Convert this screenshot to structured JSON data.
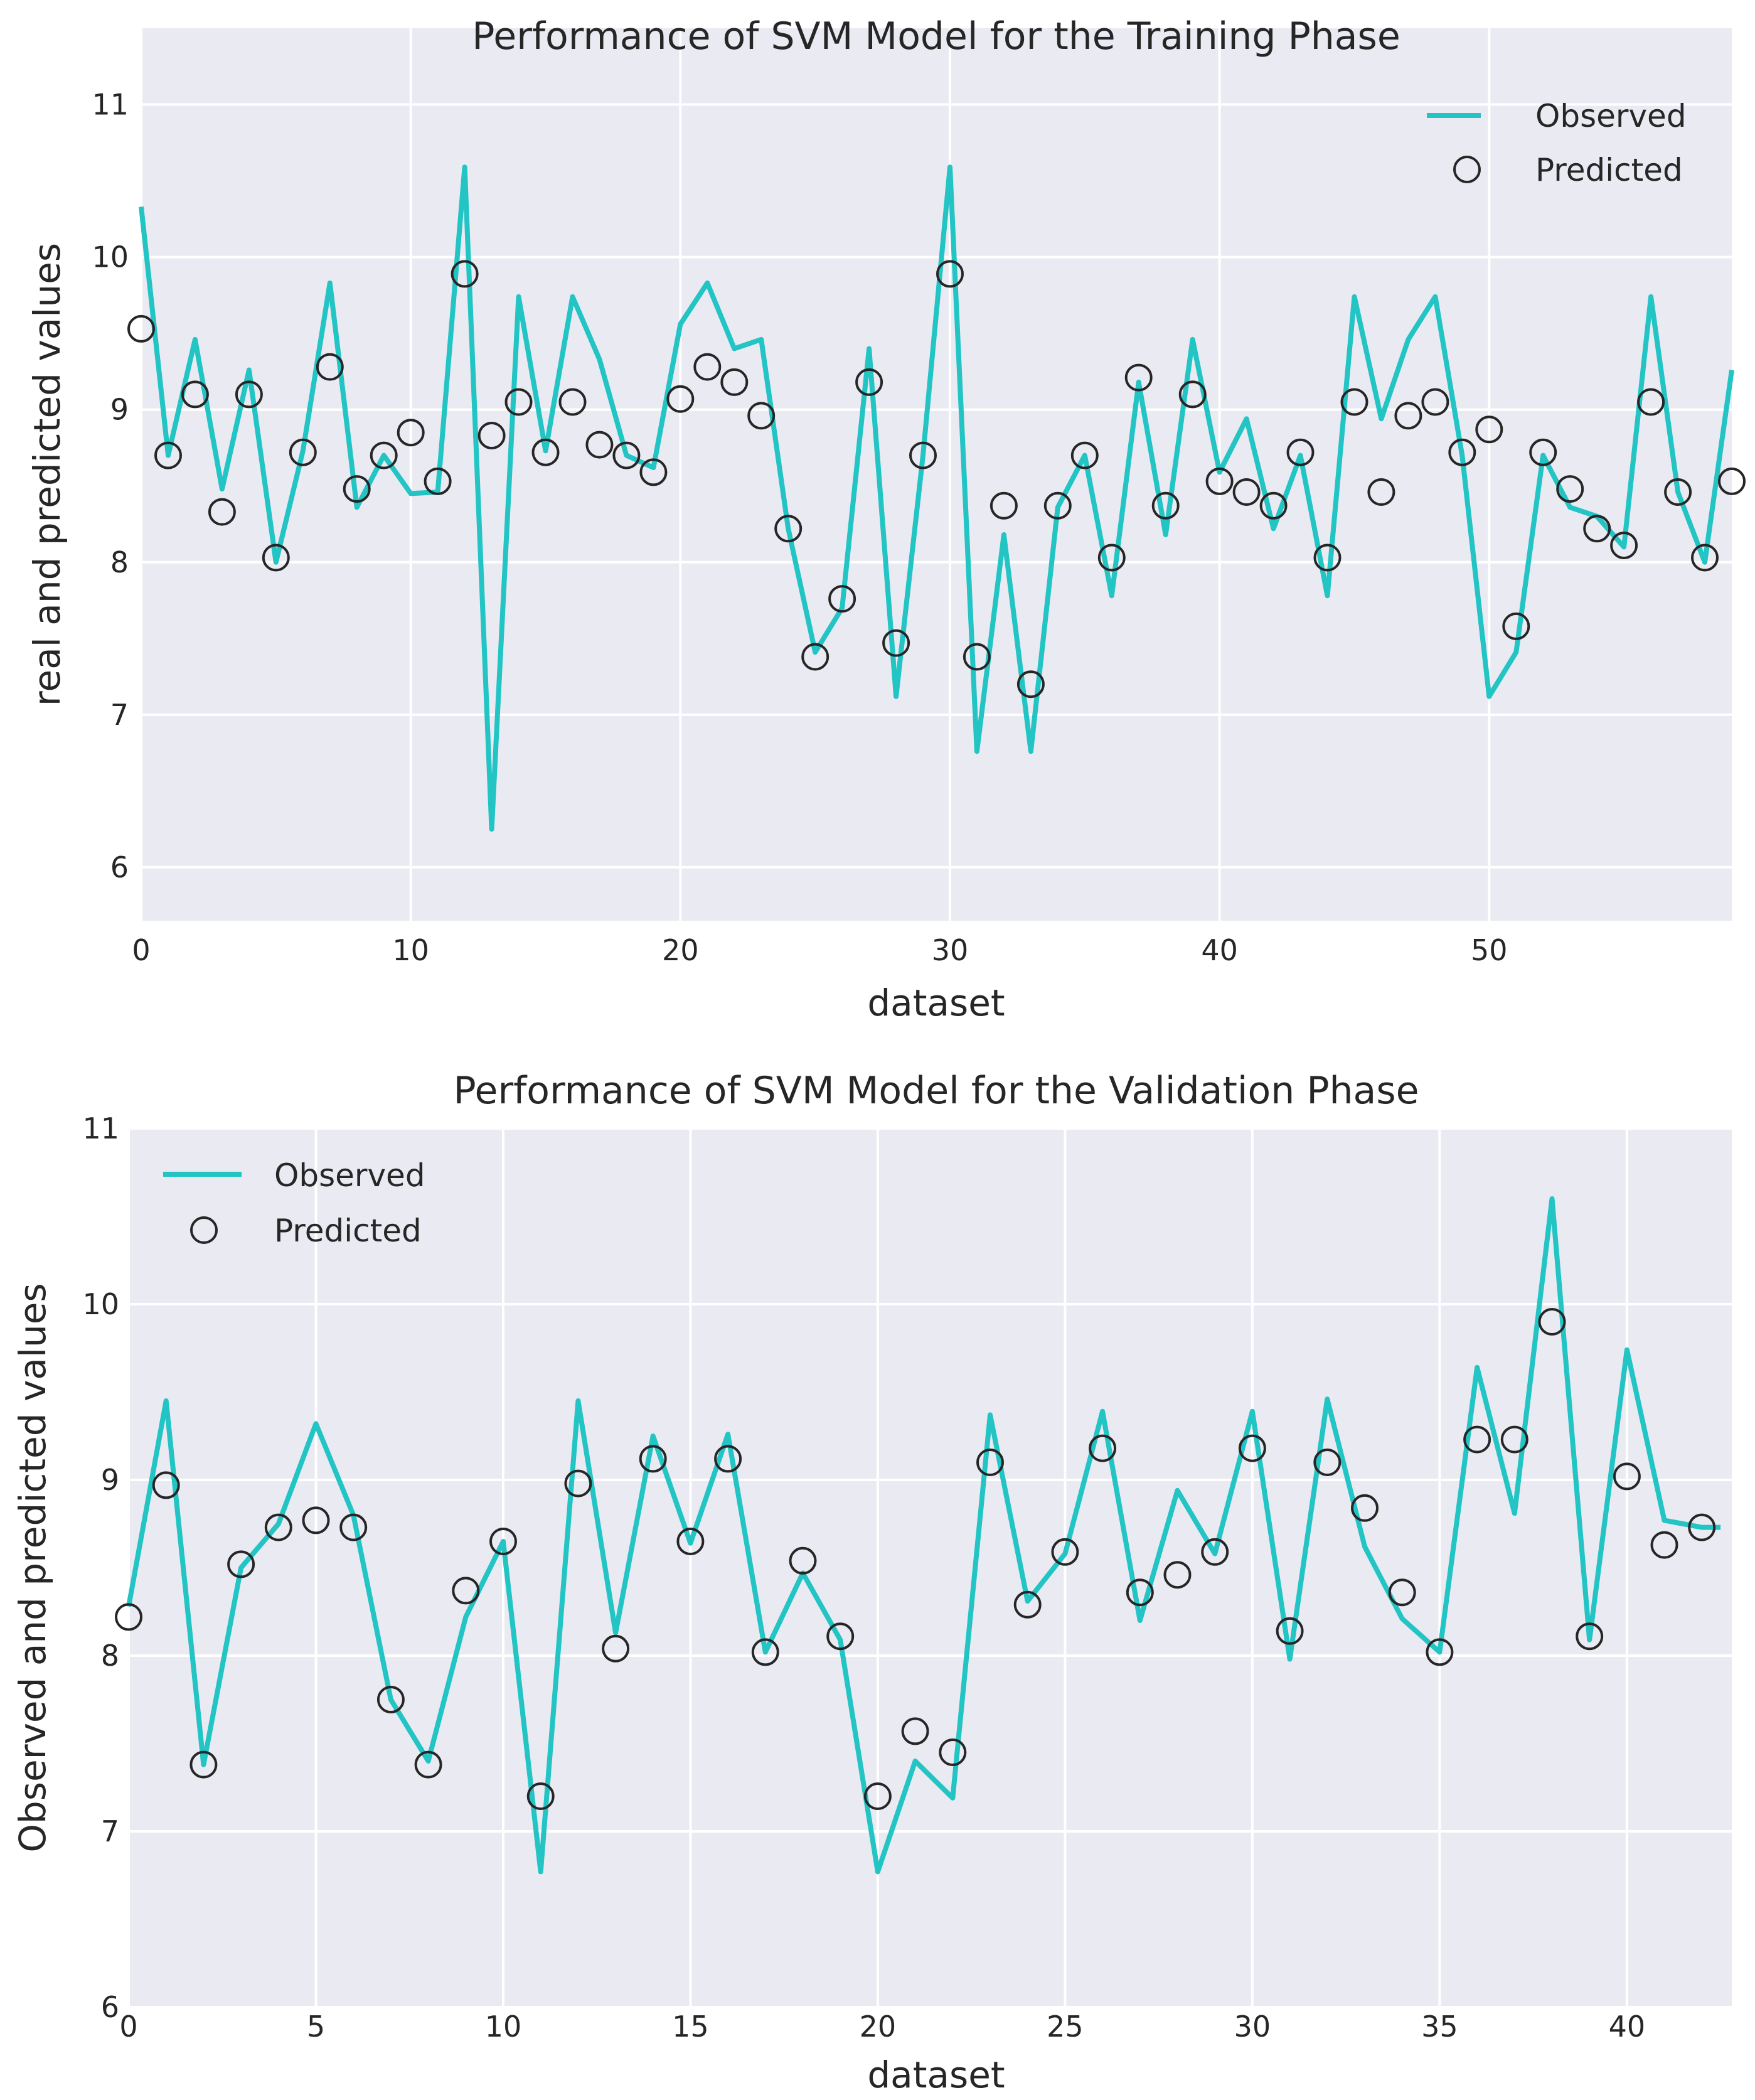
{
  "chart_data": [
    {
      "type": "line",
      "title": "Performance of SVM Model for the Training Phase",
      "xlabel": "dataset",
      "ylabel": "real and predicted values",
      "xlim": [
        0,
        59
      ],
      "ylim": [
        5.65,
        11.5
      ],
      "xticks": [
        "0",
        "10",
        "20",
        "30",
        "40",
        "50"
      ],
      "yticks": [
        "6",
        "7",
        "8",
        "9",
        "10",
        "11"
      ],
      "grid": true,
      "legend_position": "top-right",
      "series": [
        {
          "name": "Observed",
          "style": "line",
          "color": "#22C4C4",
          "x": [
            0,
            1,
            2,
            3,
            4,
            5,
            6,
            7,
            8,
            9,
            10,
            11,
            12,
            13,
            14,
            15,
            16,
            17,
            18,
            19,
            20,
            21,
            22,
            23,
            24,
            25,
            26,
            27,
            28,
            29,
            30,
            31,
            32,
            33,
            34,
            35,
            36,
            37,
            38,
            39,
            40,
            41,
            42,
            43,
            44,
            45,
            46,
            47,
            48,
            49,
            50,
            51,
            52,
            53,
            54,
            55,
            56,
            57,
            58,
            59
          ],
          "values": [
            10.33,
            8.7,
            9.46,
            8.48,
            9.26,
            8.0,
            8.73,
            9.83,
            8.36,
            8.7,
            8.45,
            8.46,
            10.59,
            6.25,
            9.74,
            8.73,
            9.74,
            9.33,
            8.7,
            8.62,
            9.56,
            9.83,
            9.4,
            9.46,
            8.22,
            7.41,
            7.7,
            9.4,
            7.12,
            8.7,
            10.59,
            6.76,
            8.18,
            6.76,
            8.36,
            8.7,
            7.78,
            9.18,
            8.18,
            9.46,
            8.59,
            8.94,
            8.22,
            8.7,
            7.78,
            9.74,
            8.94,
            9.46,
            9.74,
            8.7,
            7.12,
            7.41,
            8.7,
            8.36,
            8.3,
            8.1,
            9.74,
            8.46,
            8.0,
            9.26
          ]
        },
        {
          "name": "Predicted",
          "style": "marker",
          "x": [
            0,
            1,
            2,
            3,
            4,
            5,
            6,
            7,
            8,
            9,
            10,
            11,
            12,
            13,
            14,
            15,
            16,
            17,
            18,
            19,
            20,
            21,
            22,
            23,
            24,
            25,
            26,
            27,
            28,
            29,
            30,
            31,
            32,
            33,
            34,
            35,
            36,
            37,
            38,
            39,
            40,
            41,
            42,
            43,
            44,
            45,
            46,
            47,
            48,
            49,
            50,
            51,
            52,
            53,
            54,
            55,
            56,
            57,
            58,
            59
          ],
          "values": [
            9.53,
            8.7,
            9.1,
            8.33,
            9.1,
            8.03,
            8.72,
            9.28,
            8.48,
            8.7,
            8.85,
            8.53,
            9.89,
            8.83,
            9.05,
            8.72,
            9.05,
            8.77,
            8.7,
            8.59,
            9.07,
            9.28,
            9.18,
            8.96,
            8.22,
            7.38,
            7.76,
            9.18,
            7.47,
            8.7,
            9.89,
            7.38,
            8.37,
            7.2,
            8.37,
            8.7,
            8.03,
            9.21,
            8.37,
            9.1,
            8.53,
            8.46,
            8.37,
            8.72,
            8.03,
            9.05,
            8.46,
            8.96,
            9.05,
            8.72,
            8.87,
            7.58,
            8.72,
            8.48,
            8.22,
            8.11,
            9.05,
            8.46,
            8.03,
            8.53
          ]
        }
      ]
    },
    {
      "type": "line",
      "title": "Performance of SVM Model for the Validation Phase",
      "xlabel": "dataset",
      "ylabel": "Observed and predicted values",
      "xlim": [
        0,
        42.8
      ],
      "ylim": [
        6,
        11
      ],
      "xticks": [
        "0",
        "5",
        "10",
        "15",
        "20",
        "25",
        "30",
        "35",
        "40"
      ],
      "yticks": [
        "6",
        "7",
        "8",
        "9",
        "10",
        "11"
      ],
      "grid": true,
      "legend_position": "top-left",
      "series": [
        {
          "name": "Observed",
          "style": "line",
          "color": "#22C4C4",
          "x": [
            0,
            1,
            2,
            3,
            4,
            5,
            6,
            7,
            8,
            9,
            10,
            11,
            12,
            13,
            14,
            15,
            16,
            17,
            18,
            19,
            20,
            21,
            22,
            23,
            24,
            25,
            26,
            27,
            28,
            29,
            30,
            31,
            32,
            33,
            34,
            35,
            36,
            37,
            38,
            39,
            40,
            41,
            42
          ],
          "values": [
            8.28,
            9.45,
            7.38,
            8.5,
            8.75,
            9.32,
            8.8,
            7.75,
            7.4,
            8.22,
            8.65,
            6.77,
            9.45,
            8.13,
            9.25,
            8.64,
            9.26,
            8.02,
            8.47,
            8.09,
            6.77,
            7.4,
            7.19,
            9.37,
            8.31,
            8.58,
            9.39,
            8.2,
            8.94,
            8.58,
            9.39,
            7.98,
            9.46,
            8.62,
            8.21,
            8.02,
            9.64,
            8.81,
            10.6,
            8.09,
            9.74,
            8.77,
            8.73
          ],
          "x_end_extend": 42.5
        },
        {
          "name": "Predicted",
          "style": "marker",
          "x": [
            0,
            1,
            2,
            3,
            4,
            5,
            6,
            7,
            8,
            9,
            10,
            11,
            12,
            13,
            14,
            15,
            16,
            17,
            18,
            19,
            20,
            21,
            22,
            23,
            24,
            25,
            26,
            27,
            28,
            29,
            30,
            31,
            32,
            33,
            34,
            35,
            36,
            37,
            38,
            39,
            40,
            41,
            42
          ],
          "values": [
            8.22,
            8.97,
            7.38,
            8.52,
            8.73,
            8.77,
            8.73,
            7.75,
            7.38,
            8.37,
            8.65,
            7.2,
            8.98,
            8.04,
            9.12,
            8.65,
            9.12,
            8.02,
            8.54,
            8.11,
            7.2,
            7.57,
            7.45,
            9.1,
            8.29,
            8.59,
            9.18,
            8.36,
            8.46,
            8.59,
            9.18,
            8.14,
            9.1,
            8.84,
            8.36,
            8.02,
            9.23,
            9.23,
            9.9,
            8.11,
            9.02,
            8.63,
            8.73
          ]
        }
      ]
    }
  ],
  "colors": {
    "observed_line": "#22C4C4",
    "plot_background": "#EAEAF2",
    "grid": "#FFFFFF",
    "marker_edge": "#262626"
  }
}
